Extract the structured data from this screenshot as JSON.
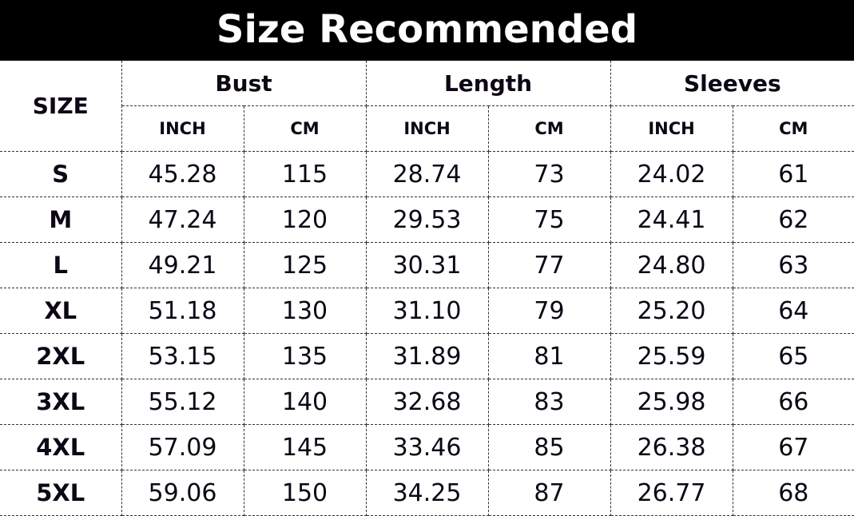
{
  "title": "Size Recommended",
  "header": {
    "size_label": "SIZE",
    "groups": [
      "Bust",
      "Length",
      "Sleeves"
    ],
    "units": [
      "INCH",
      "CM"
    ]
  },
  "rows": [
    {
      "size": "S",
      "values": [
        "45.28",
        "115",
        "28.74",
        "73",
        "24.02",
        "61"
      ]
    },
    {
      "size": "M",
      "values": [
        "47.24",
        "120",
        "29.53",
        "75",
        "24.41",
        "62"
      ]
    },
    {
      "size": "L",
      "values": [
        "49.21",
        "125",
        "30.31",
        "77",
        "24.80",
        "63"
      ]
    },
    {
      "size": "XL",
      "values": [
        "51.18",
        "130",
        "31.10",
        "79",
        "25.20",
        "64"
      ]
    },
    {
      "size": "2XL",
      "values": [
        "53.15",
        "135",
        "31.89",
        "81",
        "25.59",
        "65"
      ]
    },
    {
      "size": "3XL",
      "values": [
        "55.12",
        "140",
        "32.68",
        "83",
        "25.98",
        "66"
      ]
    },
    {
      "size": "4XL",
      "values": [
        "57.09",
        "145",
        "33.46",
        "85",
        "26.38",
        "67"
      ]
    },
    {
      "size": "5XL",
      "values": [
        "59.06",
        "150",
        "34.25",
        "87",
        "26.77",
        "68"
      ]
    }
  ]
}
